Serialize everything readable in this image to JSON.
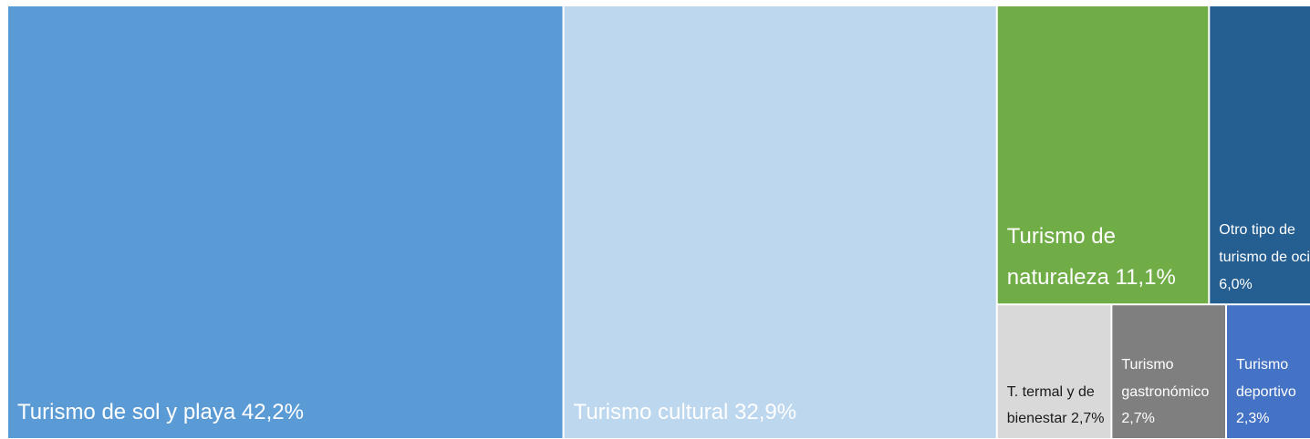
{
  "chart_data": {
    "type": "treemap",
    "categories": [
      "Turismo de sol y playa",
      "Turismo cultural",
      "Turismo de naturaleza",
      "Otro tipo de turismo de ocio",
      "T. termal y de bienestar",
      "Turismo gastronómico",
      "Turismo deportivo"
    ],
    "values": [
      42.2,
      32.9,
      11.1,
      6.0,
      2.7,
      2.7,
      2.3
    ],
    "value_labels": [
      "42,2%",
      "32,9%",
      "11,1%",
      "6,0%",
      "2,7%",
      "2,7%",
      "2,3%"
    ],
    "colors": [
      "#5b9bd5",
      "#bdd7ee",
      "#70ad47",
      "#255e91",
      "#d9d9d9",
      "#7f7f7f",
      "#4472c4"
    ],
    "label_colors": [
      "#ffffff",
      "#ffffff",
      "#ffffff",
      "#ffffff",
      "#1a1a1a",
      "#ffffff",
      "#ffffff"
    ]
  }
}
